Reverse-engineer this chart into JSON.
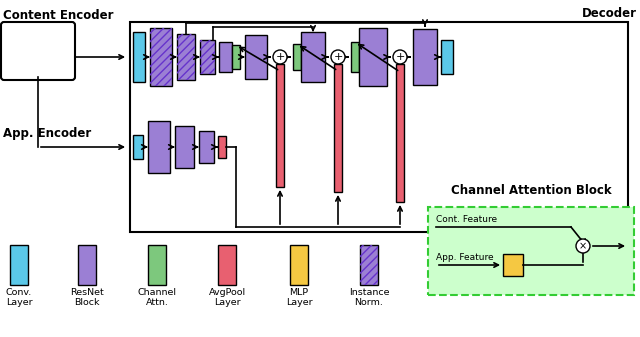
{
  "colors": {
    "cyan": "#5BC8E8",
    "purple": "#9B7FD4",
    "green": "#7DC87D",
    "red": "#E86070",
    "yellow": "#F5C842",
    "hatched_purple_bg": "#9B7FD4",
    "hatched_purple_lines": "#6633CC",
    "light_green_bg": "#CCFFCC",
    "light_green_border": "#33CC33"
  },
  "content_encoder_label": "Content Encoder",
  "app_encoder_label": "App. Encoder",
  "decoder_label": "Decoder",
  "cab_title": "Channel Attention Block",
  "legend_items": [
    {
      "color": "#5BC8E8",
      "hatch": false,
      "label1": "Conv.",
      "label2": "Layer"
    },
    {
      "color": "#9B7FD4",
      "hatch": false,
      "label1": "ResNet",
      "label2": "Block"
    },
    {
      "color": "#7DC87D",
      "hatch": false,
      "label1": "Channel",
      "label2": "Attn."
    },
    {
      "color": "#E86070",
      "hatch": false,
      "label1": "AvgPool",
      "label2": "Layer"
    },
    {
      "color": "#F5C842",
      "hatch": false,
      "label1": "MLP",
      "label2": "Layer"
    },
    {
      "color": "#9B7FD4",
      "hatch": true,
      "label1": "Instance",
      "label2": "Norm."
    }
  ]
}
